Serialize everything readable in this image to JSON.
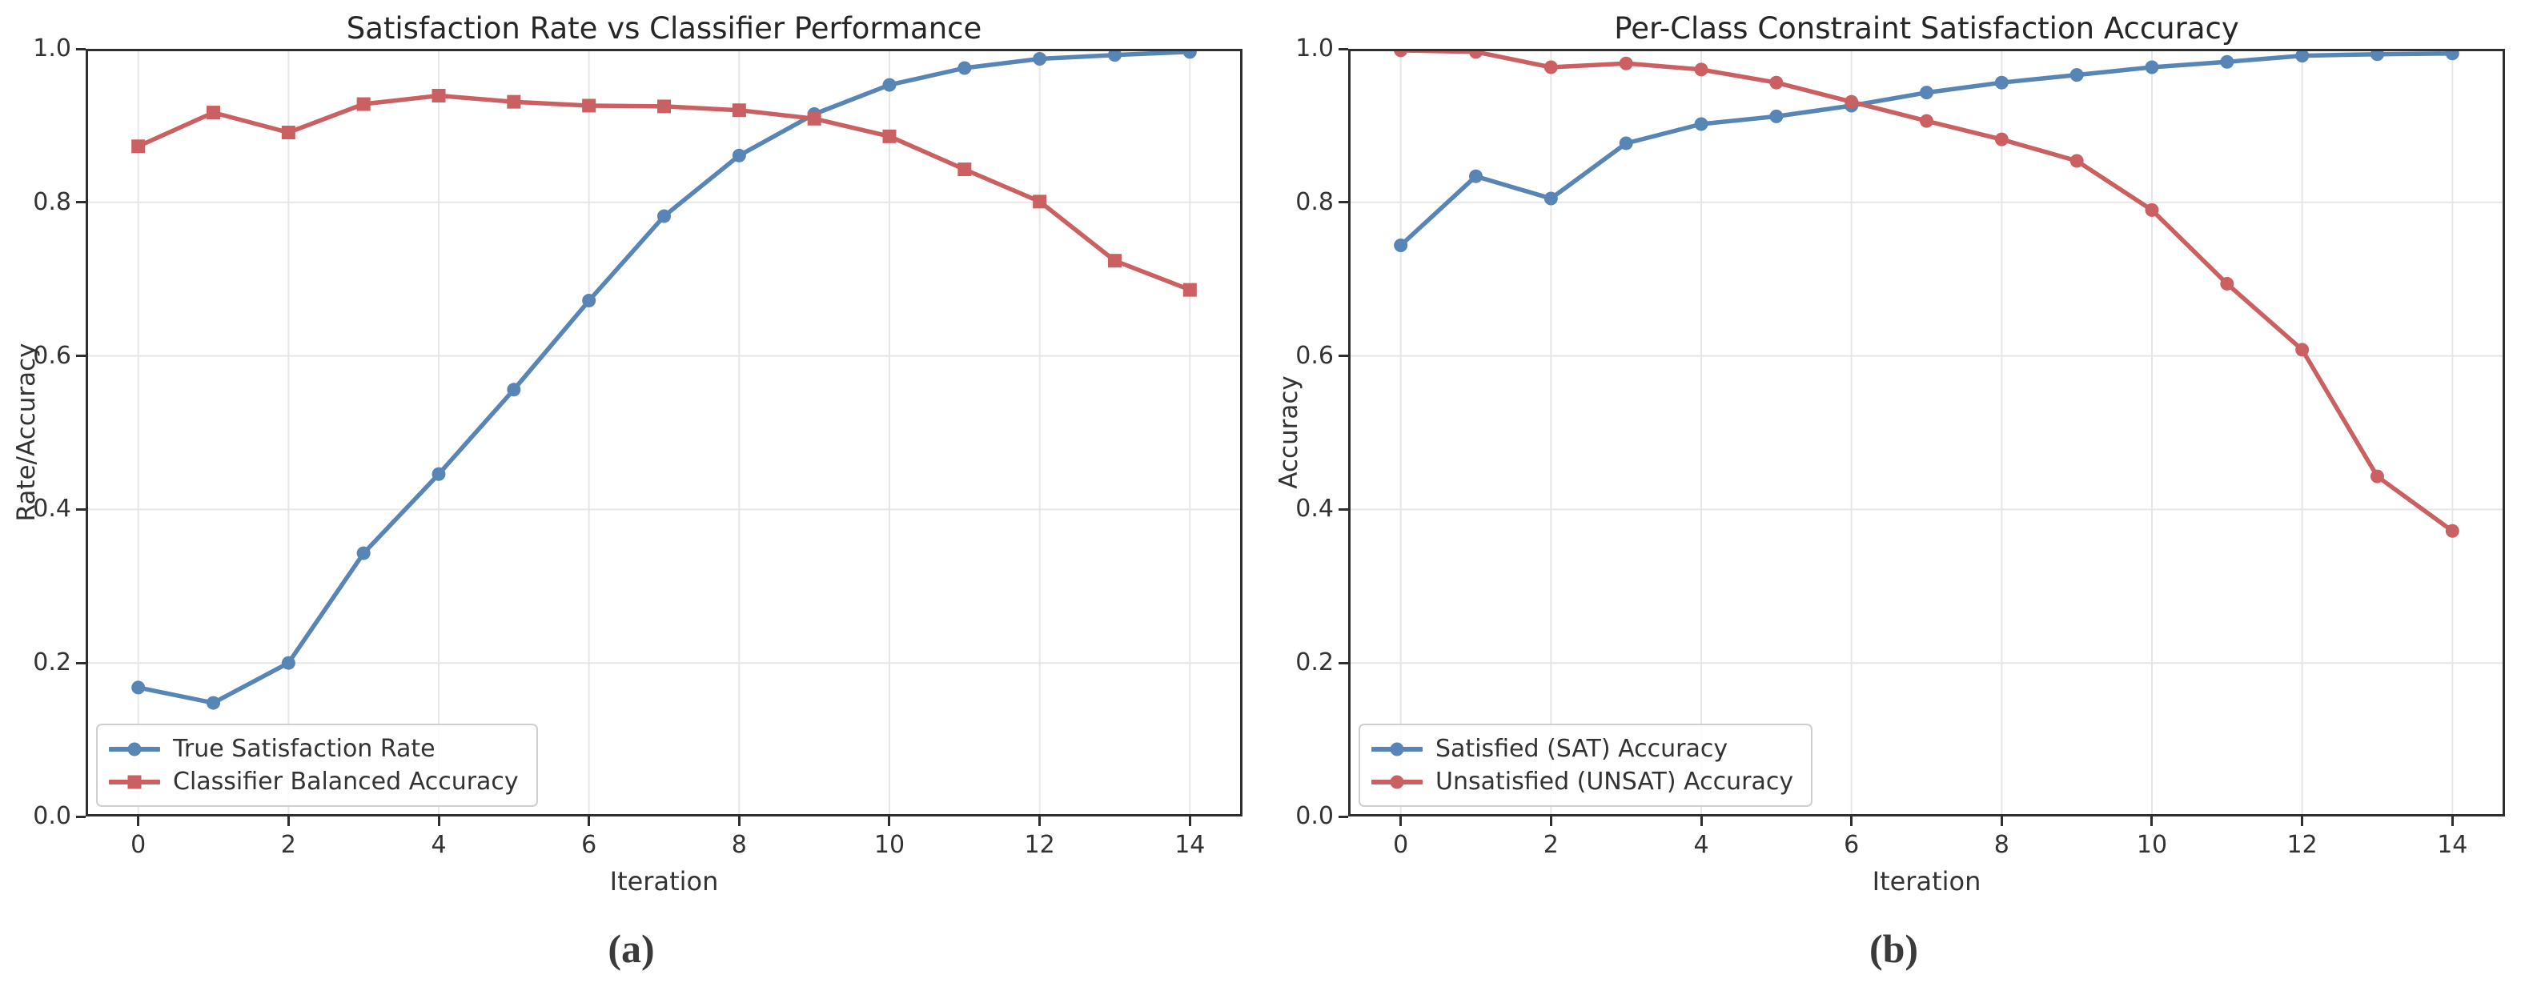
{
  "figure": {
    "background": "#ffffff",
    "accent_blue": "#5785B5",
    "accent_red": "#CB6062"
  },
  "chart_data": [
    {
      "type": "line",
      "caption": "(a)",
      "title": "Satisfaction Rate vs Classifier Performance",
      "xlabel": "Iteration",
      "ylabel": "Rate/Accuracy",
      "x": [
        0,
        1,
        2,
        3,
        4,
        5,
        6,
        7,
        8,
        9,
        10,
        11,
        12,
        13,
        14
      ],
      "xlim": [
        -0.7,
        14.7
      ],
      "ylim": [
        0.0,
        1.0
      ],
      "xticks": [
        0,
        2,
        4,
        6,
        8,
        10,
        12,
        14
      ],
      "yticks": [
        "0.0",
        "0.2",
        "0.4",
        "0.6",
        "0.8",
        "1.0"
      ],
      "grid": true,
      "legend_position": "lower left",
      "series": [
        {
          "name": "True Satisfaction Rate",
          "color": "#5785B5",
          "marker": "circle",
          "values": [
            0.168,
            0.148,
            0.2,
            0.343,
            0.446,
            0.556,
            0.672,
            0.782,
            0.861,
            0.915,
            0.953,
            0.975,
            0.987,
            0.992,
            0.996
          ]
        },
        {
          "name": "Classifier Balanced Accuracy",
          "color": "#CB6062",
          "marker": "square",
          "values": [
            0.873,
            0.917,
            0.891,
            0.928,
            0.939,
            0.931,
            0.926,
            0.925,
            0.92,
            0.909,
            0.886,
            0.843,
            0.801,
            0.724,
            0.686
          ]
        }
      ]
    },
    {
      "type": "line",
      "caption": "(b)",
      "title": "Per-Class Constraint Satisfaction Accuracy",
      "xlabel": "Iteration",
      "ylabel": "Accuracy",
      "x": [
        0,
        1,
        2,
        3,
        4,
        5,
        6,
        7,
        8,
        9,
        10,
        11,
        12,
        13,
        14
      ],
      "xlim": [
        -0.7,
        14.7
      ],
      "ylim": [
        0.0,
        1.0
      ],
      "xticks": [
        0,
        2,
        4,
        6,
        8,
        10,
        12,
        14
      ],
      "yticks": [
        "0.0",
        "0.2",
        "0.4",
        "0.6",
        "0.8",
        "1.0"
      ],
      "grid": true,
      "legend_position": "lower left",
      "series": [
        {
          "name": "Satisfied (SAT) Accuracy",
          "color": "#5785B5",
          "marker": "circle",
          "values": [
            0.744,
            0.834,
            0.805,
            0.877,
            0.902,
            0.912,
            0.926,
            0.943,
            0.956,
            0.966,
            0.976,
            0.983,
            0.991,
            0.993,
            0.994
          ]
        },
        {
          "name": "Unsatisfied (UNSAT) Accuracy",
          "color": "#CB6062",
          "marker": "circle",
          "values": [
            0.998,
            0.996,
            0.976,
            0.981,
            0.973,
            0.956,
            0.931,
            0.906,
            0.882,
            0.854,
            0.79,
            0.694,
            0.608,
            0.443,
            0.372
          ]
        }
      ]
    }
  ]
}
